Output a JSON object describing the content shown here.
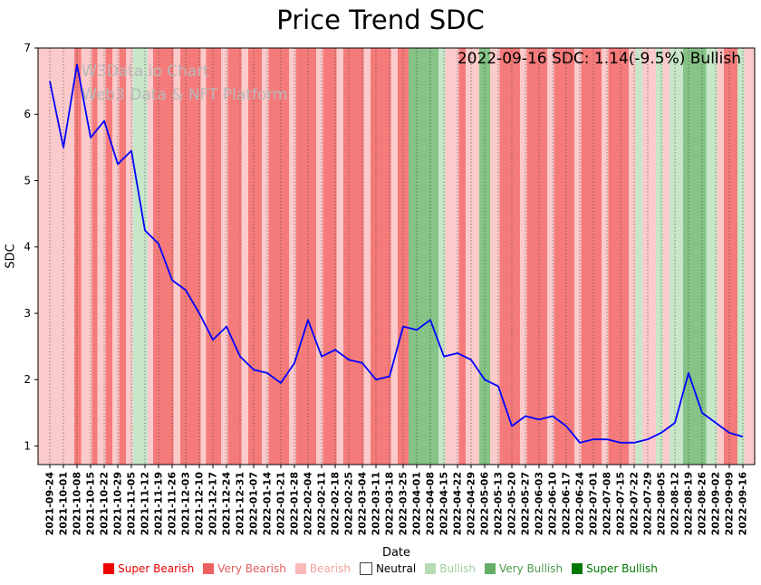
{
  "title": "Price Trend SDC",
  "annotation": "2022-09-16 SDC: 1.14(-9.5%) Bullish",
  "watermark": {
    "line1": "W3Data.io Chart",
    "line2": "Web3 Data & NFT Platform"
  },
  "chart_data": {
    "type": "line",
    "title": "Price Trend SDC",
    "xlabel": "Date",
    "ylabel": "SDC",
    "ylim": [
      0.72,
      7.0
    ],
    "yticks": [
      1,
      2,
      3,
      4,
      5,
      6,
      7
    ],
    "grid": "vertical-dotted",
    "legend_position": "bottom",
    "line_color": "#0000ff",
    "categories": [
      "2021-09-24",
      "2021-10-01",
      "2021-10-08",
      "2021-10-15",
      "2021-10-22",
      "2021-10-29",
      "2021-11-05",
      "2021-11-12",
      "2021-11-19",
      "2021-11-26",
      "2021-12-03",
      "2021-12-10",
      "2021-12-17",
      "2021-12-24",
      "2021-12-31",
      "2022-01-07",
      "2022-01-14",
      "2022-01-21",
      "2022-01-28",
      "2022-02-04",
      "2022-02-11",
      "2022-02-18",
      "2022-02-25",
      "2022-03-04",
      "2022-03-11",
      "2022-03-18",
      "2022-03-25",
      "2022-04-01",
      "2022-04-08",
      "2022-04-15",
      "2022-04-22",
      "2022-04-29",
      "2022-05-06",
      "2022-05-13",
      "2022-05-20",
      "2022-05-27",
      "2022-06-03",
      "2022-06-10",
      "2022-06-17",
      "2022-06-24",
      "2022-07-01",
      "2022-07-08",
      "2022-07-15",
      "2022-07-22",
      "2022-07-29",
      "2022-08-05",
      "2022-08-12",
      "2022-08-19",
      "2022-08-26",
      "2022-09-02",
      "2022-09-09",
      "2022-09-16"
    ],
    "values": [
      6.5,
      5.5,
      6.75,
      5.65,
      5.9,
      5.25,
      5.45,
      4.25,
      4.05,
      3.5,
      3.35,
      3.0,
      2.6,
      2.8,
      2.35,
      2.15,
      2.1,
      1.95,
      2.25,
      2.9,
      2.35,
      2.45,
      2.3,
      2.25,
      2.0,
      2.05,
      2.8,
      2.75,
      2.9,
      2.35,
      2.4,
      2.3,
      2.0,
      1.9,
      1.3,
      1.45,
      1.4,
      1.45,
      1.3,
      1.05,
      1.1,
      1.1,
      1.05,
      1.05,
      1.1,
      1.2,
      1.35,
      2.1,
      1.5,
      1.35,
      1.2,
      1.14
    ],
    "sentiment_colors": {
      "super_bearish": "#ff0000",
      "very_bearish": "#f57b7b",
      "bearish": "#fbcaca",
      "neutral": "#ffffff",
      "bullish": "#c8e6c8",
      "very_bullish": "#86c386",
      "super_bullish": "#008000"
    },
    "bands": [
      [
        -1,
        1.8,
        "bearish"
      ],
      [
        1.8,
        2.3,
        "very_bearish"
      ],
      [
        2.3,
        3.1,
        "bearish"
      ],
      [
        3.1,
        3.5,
        "very_bearish"
      ],
      [
        3.5,
        4.1,
        "bearish"
      ],
      [
        4.1,
        4.6,
        "very_bearish"
      ],
      [
        4.6,
        5.1,
        "bearish"
      ],
      [
        5.1,
        5.6,
        "very_bearish"
      ],
      [
        5.6,
        6.1,
        "bearish"
      ],
      [
        6.1,
        7.2,
        "bullish"
      ],
      [
        7.2,
        7.6,
        "bearish"
      ],
      [
        7.6,
        9.1,
        "very_bearish"
      ],
      [
        9.1,
        9.6,
        "bearish"
      ],
      [
        9.6,
        11.1,
        "very_bearish"
      ],
      [
        11.1,
        11.5,
        "bearish"
      ],
      [
        11.5,
        12.6,
        "very_bearish"
      ],
      [
        12.6,
        13.1,
        "bearish"
      ],
      [
        13.1,
        14.1,
        "very_bearish"
      ],
      [
        14.1,
        14.6,
        "bearish"
      ],
      [
        14.6,
        15.6,
        "very_bearish"
      ],
      [
        15.6,
        16.1,
        "bearish"
      ],
      [
        16.1,
        17.6,
        "very_bearish"
      ],
      [
        17.6,
        18.1,
        "bearish"
      ],
      [
        18.1,
        19.6,
        "very_bearish"
      ],
      [
        19.6,
        20.1,
        "bearish"
      ],
      [
        20.1,
        21.1,
        "very_bearish"
      ],
      [
        21.1,
        21.6,
        "bearish"
      ],
      [
        21.6,
        23.1,
        "very_bearish"
      ],
      [
        23.1,
        23.6,
        "bearish"
      ],
      [
        23.6,
        25.1,
        "very_bearish"
      ],
      [
        25.1,
        25.6,
        "bearish"
      ],
      [
        25.6,
        26.4,
        "very_bearish"
      ],
      [
        26.4,
        28.6,
        "very_bullish"
      ],
      [
        28.6,
        29.1,
        "bullish"
      ],
      [
        29.1,
        30.1,
        "bearish"
      ],
      [
        30.1,
        30.6,
        "very_bearish"
      ],
      [
        30.6,
        31.6,
        "bearish"
      ],
      [
        31.6,
        32.4,
        "very_bullish"
      ],
      [
        32.4,
        33.1,
        "bearish"
      ],
      [
        33.1,
        34.6,
        "very_bearish"
      ],
      [
        34.6,
        35.1,
        "bearish"
      ],
      [
        35.1,
        36.6,
        "very_bearish"
      ],
      [
        36.6,
        37.1,
        "bearish"
      ],
      [
        37.1,
        38.6,
        "very_bearish"
      ],
      [
        38.6,
        39.1,
        "bearish"
      ],
      [
        39.1,
        40.6,
        "very_bearish"
      ],
      [
        40.6,
        41.1,
        "bearish"
      ],
      [
        41.1,
        42.6,
        "very_bearish"
      ],
      [
        42.6,
        43.1,
        "bearish"
      ],
      [
        43.1,
        43.6,
        "bullish"
      ],
      [
        43.6,
        44.6,
        "bearish"
      ],
      [
        44.6,
        45.1,
        "bullish"
      ],
      [
        45.1,
        45.6,
        "bearish"
      ],
      [
        45.6,
        46.6,
        "bullish"
      ],
      [
        46.6,
        48.3,
        "very_bullish"
      ],
      [
        48.3,
        49.1,
        "bullish"
      ],
      [
        49.1,
        49.6,
        "bearish"
      ],
      [
        49.6,
        50.6,
        "very_bearish"
      ],
      [
        50.6,
        51.1,
        "bullish"
      ],
      [
        51.1,
        53,
        "bearish"
      ]
    ]
  },
  "legend": {
    "items": [
      {
        "label": "Super Bearish",
        "key": "super_bearish",
        "swatch": "#ee0000",
        "text_color": "#ee0000"
      },
      {
        "label": "Very Bearish",
        "key": "very_bearish",
        "swatch": "#ec5f5f",
        "text_color": "#e05c5c"
      },
      {
        "label": "Bearish",
        "key": "bearish",
        "swatch": "#f9b9b9",
        "text_color": "#f2a1a1"
      },
      {
        "label": "Neutral",
        "key": "neutral",
        "swatch": "#ffffff",
        "text_color": "#000000"
      },
      {
        "label": "Bullish",
        "key": "bullish",
        "swatch": "#b5dcb5",
        "text_color": "#9ccf9c"
      },
      {
        "label": "Very Bullish",
        "key": "very_bullish",
        "swatch": "#66ad66",
        "text_color": "#4e9a4e"
      },
      {
        "label": "Super Bullish",
        "key": "super_bullish",
        "swatch": "#007700",
        "text_color": "#007700"
      }
    ]
  }
}
